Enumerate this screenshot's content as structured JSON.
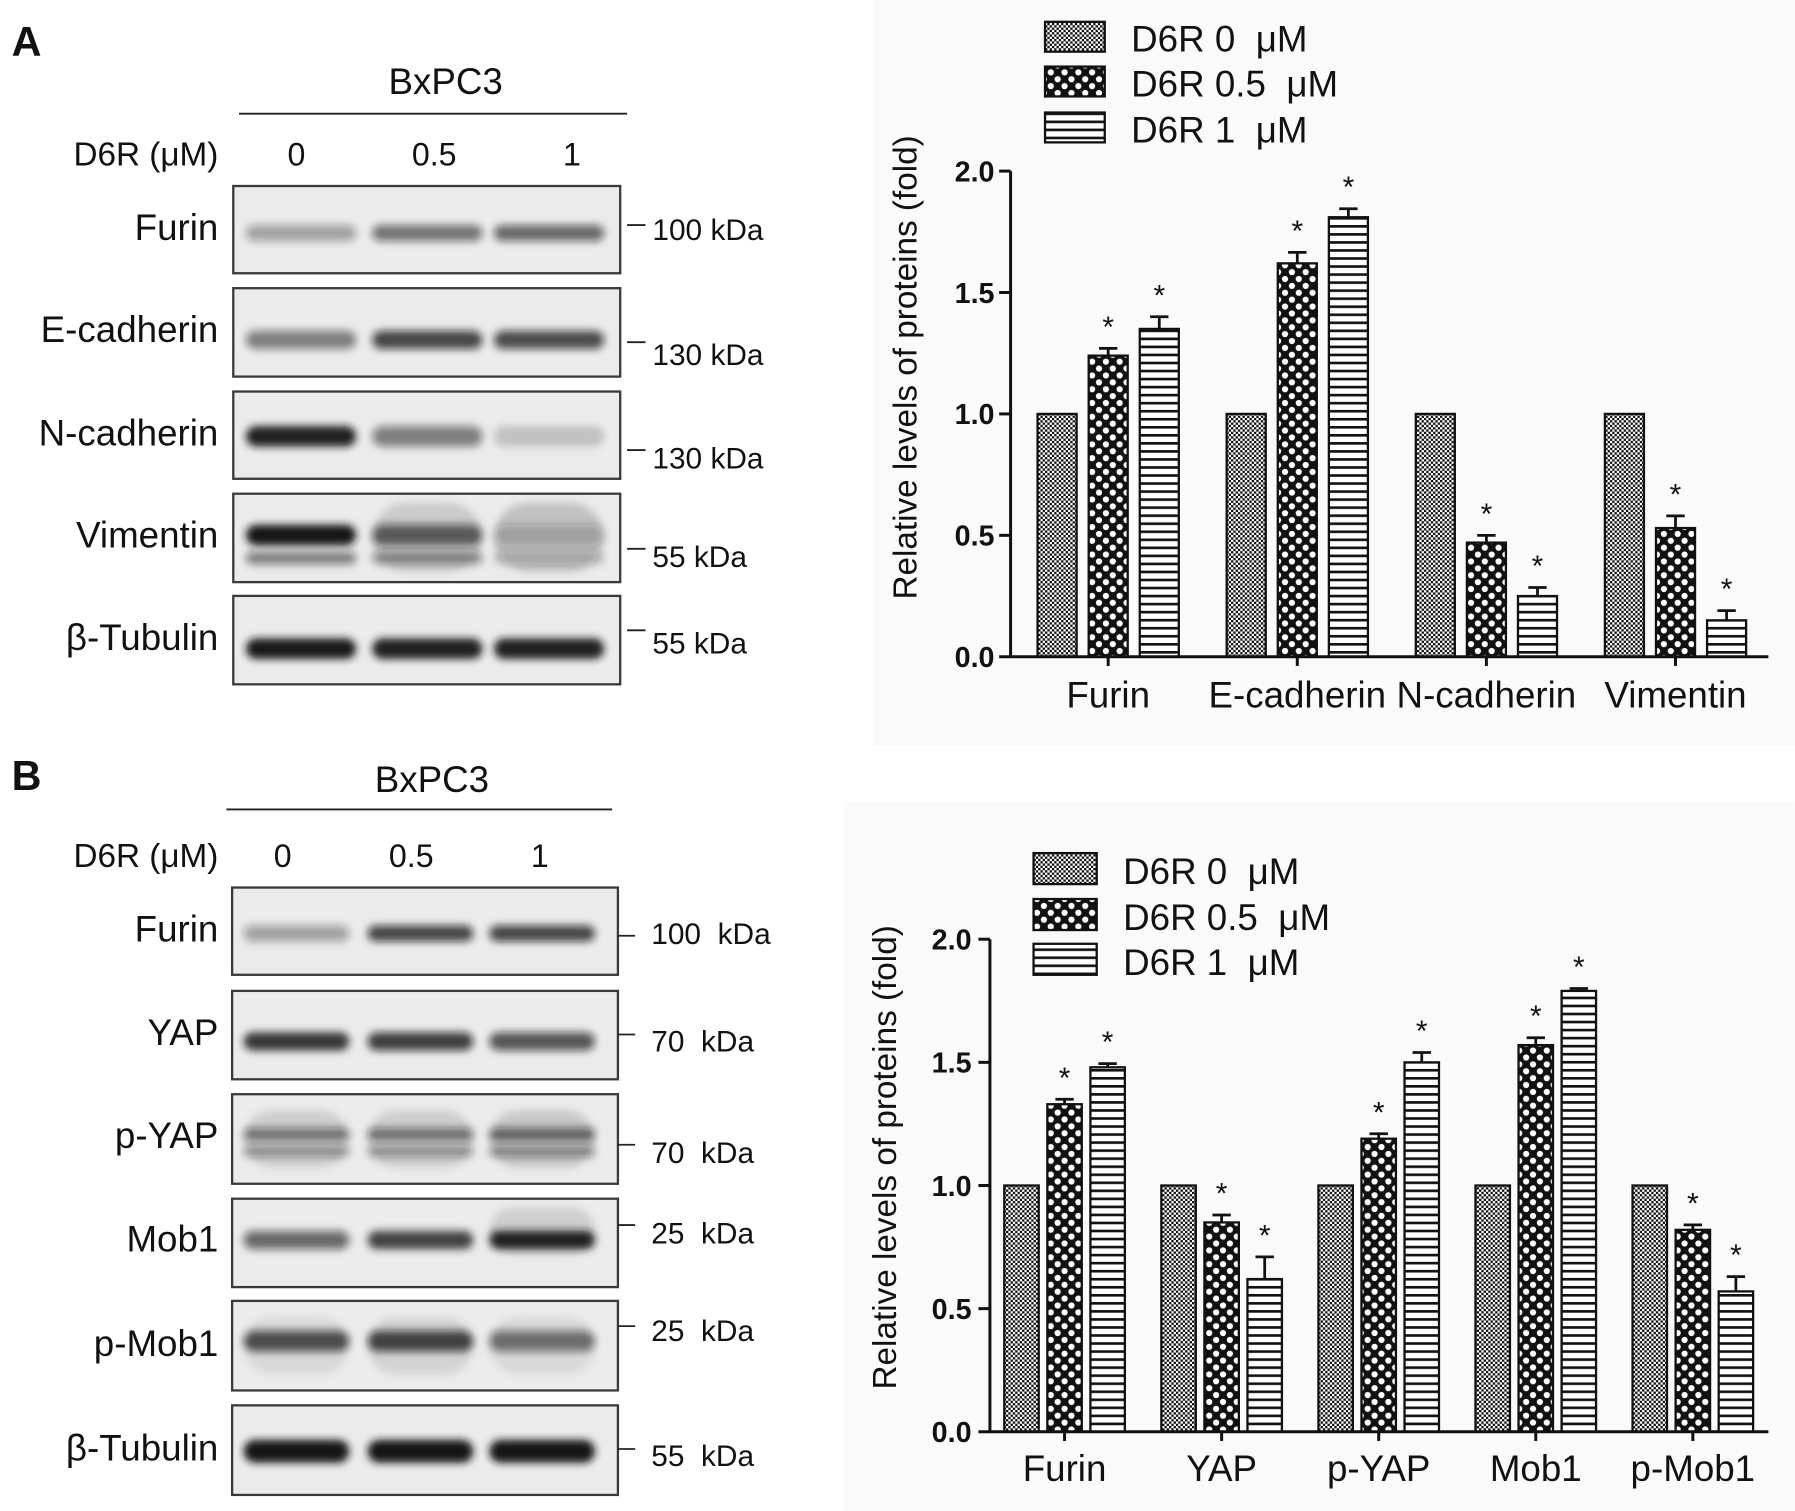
{
  "figure": {
    "panels": [
      {
        "label": "A",
        "blot": {
          "title": "BxPC3",
          "dose_label": "D6R (μM)",
          "lanes": [
            "0",
            "0.5",
            "1"
          ],
          "rows": [
            {
              "protein": "Furin",
              "marker": "100 kDa"
            },
            {
              "protein": "E-cadherin",
              "marker": "130 kDa"
            },
            {
              "protein": "N-cadherin",
              "marker": "130 kDa"
            },
            {
              "protein": "Vimentin",
              "marker": "55 kDa"
            },
            {
              "protein": "β-Tubulin",
              "marker": "55 kDa"
            }
          ]
        }
      },
      {
        "label": "B",
        "blot": {
          "title": "BxPC3",
          "dose_label": "D6R (μM)",
          "lanes": [
            "0",
            "0.5",
            "1"
          ],
          "rows": [
            {
              "protein": "Furin",
              "marker": "100  kDa"
            },
            {
              "protein": "YAP",
              "marker": "70  kDa"
            },
            {
              "protein": "p-YAP",
              "marker": "70  kDa"
            },
            {
              "protein": "Mob1",
              "marker": "25  kDa"
            },
            {
              "protein": "p-Mob1",
              "marker": "25  kDa"
            },
            {
              "protein": "β-Tubulin",
              "marker": "55  kDa"
            }
          ]
        }
      }
    ]
  },
  "chart_data": [
    {
      "type": "bar",
      "categories": [
        "Furin",
        "E-cadherin",
        "N-cadherin",
        "Vimentin"
      ],
      "series": [
        {
          "name": "D6R 0  μM",
          "pattern": "fine-checker",
          "values": [
            1.0,
            1.0,
            1.0,
            1.0
          ],
          "errors": [
            0,
            0,
            0,
            0
          ],
          "significant": [
            false,
            false,
            false,
            false
          ]
        },
        {
          "name": "D6R 0.5  μM",
          "pattern": "checkerboard",
          "values": [
            1.24,
            1.62,
            0.47,
            0.53
          ],
          "errors": [
            0.03,
            0.045,
            0.03,
            0.05
          ],
          "significant": [
            true,
            true,
            true,
            true
          ]
        },
        {
          "name": "D6R 1  μM",
          "pattern": "horizontal-stripes",
          "values": [
            1.35,
            1.81,
            0.25,
            0.15
          ],
          "errors": [
            0.05,
            0.035,
            0.035,
            0.04
          ],
          "significant": [
            true,
            true,
            true,
            true
          ]
        }
      ],
      "ylabel": "Relative levels of proteins (fold)",
      "ylim": [
        0,
        2.0
      ],
      "yticks": [
        "0.0",
        "0.5",
        "1.0",
        "1.5",
        "2.0"
      ],
      "significance_marker": "*",
      "legend_position": "top",
      "grid": false
    },
    {
      "type": "bar",
      "categories": [
        "Furin",
        "YAP",
        "p-YAP",
        "Mob1",
        "p-Mob1"
      ],
      "series": [
        {
          "name": "D6R 0  μM",
          "pattern": "fine-checker",
          "values": [
            1.0,
            1.0,
            1.0,
            1.0,
            1.0
          ],
          "errors": [
            0,
            0,
            0,
            0,
            0
          ],
          "significant": [
            false,
            false,
            false,
            false,
            false
          ]
        },
        {
          "name": "D6R 0.5  μM",
          "pattern": "checkerboard",
          "values": [
            1.33,
            0.85,
            1.19,
            1.57,
            0.82
          ],
          "errors": [
            0.02,
            0.03,
            0.02,
            0.03,
            0.02
          ],
          "significant": [
            true,
            true,
            true,
            true,
            true
          ]
        },
        {
          "name": "D6R 1  μM",
          "pattern": "horizontal-stripes",
          "values": [
            1.48,
            0.62,
            1.5,
            1.79,
            0.57
          ],
          "errors": [
            0.015,
            0.09,
            0.04,
            0.01,
            0.06
          ],
          "significant": [
            true,
            true,
            true,
            true,
            true
          ]
        }
      ],
      "ylabel": "Relative levels of proteins (fold)",
      "ylim": [
        0,
        2.0
      ],
      "yticks": [
        "0.0",
        "0.5",
        "1.0",
        "1.5",
        "2.0"
      ],
      "significance_marker": "*",
      "legend_position": "top",
      "grid": false
    }
  ]
}
